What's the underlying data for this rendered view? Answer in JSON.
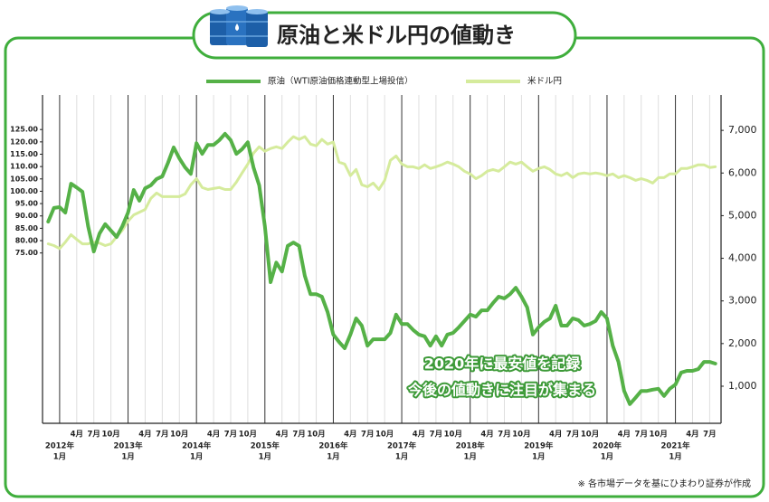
{
  "chart_data": {
    "type": "line",
    "title": "原油と米ドル円の値動き",
    "annotations": [
      "2020年に最安値を記録",
      "今後の値動きに注目が集まる"
    ],
    "footnote": "※ 各市場データを基にひまわり証券が作成",
    "grid": true,
    "legend": "top",
    "xlim": [
      "2011-10",
      "2021-09"
    ],
    "ylim": [
      6,
      139
    ],
    "y2lim": [
      130,
      7830
    ],
    "yticks": [
      {
        "value": 75,
        "label": "75.00"
      },
      {
        "value": 80,
        "label": "80.00"
      },
      {
        "value": 85,
        "label": "85.00"
      },
      {
        "value": 90,
        "label": "90.00"
      },
      {
        "value": 95,
        "label": "95.00"
      },
      {
        "value": 100,
        "label": "100.00"
      },
      {
        "value": 105,
        "label": "105.00"
      },
      {
        "value": 110,
        "label": "110.00"
      },
      {
        "value": 115,
        "label": "115.00"
      },
      {
        "value": 120,
        "label": "120.00"
      },
      {
        "value": 125,
        "label": "125.00"
      }
    ],
    "y2ticks": [
      {
        "value": 1000,
        "label": "1,000"
      },
      {
        "value": 2000,
        "label": "2,000"
      },
      {
        "value": 3000,
        "label": "3,000"
      },
      {
        "value": 4000,
        "label": "4,000"
      },
      {
        "value": 5000,
        "label": "5,000"
      },
      {
        "value": 6000,
        "label": "6,000"
      },
      {
        "value": 7000,
        "label": "7,000"
      }
    ],
    "xticks": [
      {
        "value": "2012-01",
        "label": [
          "2012年",
          "1月"
        ]
      },
      {
        "value": "2012-04",
        "label": "4月"
      },
      {
        "value": "2012-07",
        "label": "7月"
      },
      {
        "value": "2012-10",
        "label": "10月"
      },
      {
        "value": "2013-01",
        "label": [
          "2013年",
          "1月"
        ]
      },
      {
        "value": "2013-04",
        "label": "4月"
      },
      {
        "value": "2013-07",
        "label": "7月"
      },
      {
        "value": "2013-10",
        "label": "10月"
      },
      {
        "value": "2014-01",
        "label": [
          "2014年",
          "1月"
        ]
      },
      {
        "value": "2014-04",
        "label": "4月"
      },
      {
        "value": "2014-07",
        "label": "7月"
      },
      {
        "value": "2014-10",
        "label": "10月"
      },
      {
        "value": "2015-01",
        "label": [
          "2015年",
          "1月"
        ]
      },
      {
        "value": "2015-04",
        "label": "4月"
      },
      {
        "value": "2015-07",
        "label": "7月"
      },
      {
        "value": "2015-10",
        "label": "10月"
      },
      {
        "value": "2016-01",
        "label": [
          "2016年",
          "1月"
        ]
      },
      {
        "value": "2016-04",
        "label": "4月"
      },
      {
        "value": "2016-07",
        "label": "7月"
      },
      {
        "value": "2016-10",
        "label": "10月"
      },
      {
        "value": "2017-01",
        "label": [
          "2017年",
          "1月"
        ]
      },
      {
        "value": "2017-04",
        "label": "4月"
      },
      {
        "value": "2017-07",
        "label": "7月"
      },
      {
        "value": "2017-10",
        "label": "10月"
      },
      {
        "value": "2018-01",
        "label": [
          "2018年",
          "1月"
        ]
      },
      {
        "value": "2018-04",
        "label": "4月"
      },
      {
        "value": "2018-07",
        "label": "7月"
      },
      {
        "value": "2018-10",
        "label": "10月"
      },
      {
        "value": "2019-01",
        "label": [
          "2019年",
          "1月"
        ]
      },
      {
        "value": "2019-04",
        "label": "4月"
      },
      {
        "value": "2019-07",
        "label": "7月"
      },
      {
        "value": "2019-10",
        "label": "10月"
      },
      {
        "value": "2020-01",
        "label": [
          "2020年",
          "1月"
        ]
      },
      {
        "value": "2020-04",
        "label": "4月"
      },
      {
        "value": "2020-07",
        "label": "7月"
      },
      {
        "value": "2020-10",
        "label": "10月"
      },
      {
        "value": "2021-01",
        "label": [
          "2021年",
          "1月"
        ]
      },
      {
        "value": "2021-04",
        "label": "4月"
      },
      {
        "value": "2021-07",
        "label": "7月"
      }
    ],
    "x": [
      "2011-11",
      "2011-12",
      "2012-01",
      "2012-02",
      "2012-03",
      "2012-04",
      "2012-05",
      "2012-06",
      "2012-07",
      "2012-08",
      "2012-09",
      "2012-10",
      "2012-11",
      "2012-12",
      "2013-01",
      "2013-02",
      "2013-03",
      "2013-04",
      "2013-05",
      "2013-06",
      "2013-07",
      "2013-08",
      "2013-09",
      "2013-10",
      "2013-11",
      "2013-12",
      "2014-01",
      "2014-02",
      "2014-03",
      "2014-04",
      "2014-05",
      "2014-06",
      "2014-07",
      "2014-08",
      "2014-09",
      "2014-10",
      "2014-11",
      "2014-12",
      "2015-01",
      "2015-02",
      "2015-03",
      "2015-04",
      "2015-05",
      "2015-06",
      "2015-07",
      "2015-08",
      "2015-09",
      "2015-10",
      "2015-11",
      "2015-12",
      "2016-01",
      "2016-02",
      "2016-03",
      "2016-04",
      "2016-05",
      "2016-06",
      "2016-07",
      "2016-08",
      "2016-09",
      "2016-10",
      "2016-11",
      "2016-12",
      "2017-01",
      "2017-02",
      "2017-03",
      "2017-04",
      "2017-05",
      "2017-06",
      "2017-07",
      "2017-08",
      "2017-09",
      "2017-10",
      "2017-11",
      "2017-12",
      "2018-01",
      "2018-02",
      "2018-03",
      "2018-04",
      "2018-05",
      "2018-06",
      "2018-07",
      "2018-08",
      "2018-09",
      "2018-10",
      "2018-11",
      "2018-12",
      "2019-01",
      "2019-02",
      "2019-03",
      "2019-04",
      "2019-05",
      "2019-06",
      "2019-07",
      "2019-08",
      "2019-09",
      "2019-10",
      "2019-11",
      "2019-12",
      "2020-01",
      "2020-02",
      "2020-03",
      "2020-04",
      "2020-05",
      "2020-06",
      "2020-07",
      "2020-08",
      "2020-09",
      "2020-10",
      "2020-11",
      "2020-12",
      "2021-01",
      "2021-02",
      "2021-03",
      "2021-04",
      "2021-05",
      "2021-06",
      "2021-07",
      "2021-08"
    ],
    "series": [
      {
        "name": "原油（WTI原油価格連動型上場投信）",
        "color": "#55b147",
        "axis": "y2",
        "values": [
          4860,
          5180,
          5200,
          5070,
          5750,
          5660,
          5560,
          4750,
          4160,
          4580,
          4800,
          4650,
          4500,
          4750,
          5070,
          5600,
          5350,
          5640,
          5710,
          5860,
          5920,
          6240,
          6600,
          6340,
          6130,
          5980,
          6700,
          6450,
          6660,
          6660,
          6770,
          6920,
          6770,
          6450,
          6560,
          6720,
          6130,
          5710,
          4750,
          3440,
          3900,
          3690,
          4290,
          4370,
          4290,
          3590,
          3160,
          3160,
          3100,
          2740,
          2210,
          2040,
          1890,
          2210,
          2590,
          2420,
          1950,
          2100,
          2100,
          2100,
          2250,
          2680,
          2460,
          2460,
          2320,
          2210,
          2170,
          1950,
          2170,
          1950,
          2210,
          2250,
          2380,
          2530,
          2680,
          2630,
          2780,
          2780,
          2950,
          3100,
          3060,
          3160,
          3310,
          3100,
          2850,
          2210,
          2380,
          2510,
          2590,
          2890,
          2420,
          2420,
          2590,
          2550,
          2420,
          2460,
          2530,
          2740,
          2590,
          1950,
          1570,
          890,
          580,
          730,
          890,
          890,
          920,
          940,
          770,
          940,
          1040,
          1320,
          1360,
          1360,
          1400,
          1570,
          1570,
          1530
        ]
      },
      {
        "name": "米ドル円",
        "color": "#d5eb9c",
        "axis": "y",
        "values": [
          78.7,
          78.0,
          76.8,
          79.4,
          82.4,
          80.5,
          78.7,
          78.7,
          79.4,
          79.0,
          78.0,
          78.7,
          81.6,
          84.2,
          87.9,
          90.4,
          91.5,
          92.6,
          97.1,
          99.3,
          97.8,
          97.8,
          97.8,
          97.8,
          98.9,
          102.6,
          105.1,
          101.5,
          100.7,
          101.1,
          101.5,
          100.7,
          100.7,
          103.7,
          107.4,
          111.0,
          115.4,
          118.0,
          116.2,
          117.3,
          118.0,
          117.3,
          119.9,
          122.1,
          121.0,
          122.1,
          119.1,
          118.4,
          121.0,
          119.1,
          119.9,
          111.8,
          111.0,
          106.3,
          108.8,
          102.6,
          101.8,
          103.3,
          100.7,
          104.4,
          112.5,
          114.3,
          111.0,
          109.9,
          109.9,
          109.2,
          110.7,
          109.2,
          109.9,
          110.7,
          111.8,
          111.0,
          109.9,
          108.1,
          107.0,
          105.1,
          106.3,
          108.1,
          108.8,
          108.1,
          109.9,
          111.8,
          111.0,
          111.8,
          109.9,
          108.1,
          109.2,
          109.9,
          108.8,
          107.0,
          106.3,
          107.4,
          105.5,
          107.0,
          107.4,
          107.0,
          107.4,
          107.0,
          106.3,
          107.0,
          105.5,
          106.3,
          105.5,
          104.4,
          105.1,
          104.4,
          103.3,
          105.5,
          105.5,
          107.0,
          107.0,
          109.2,
          109.2,
          109.9,
          110.7,
          110.7,
          109.6,
          109.9
        ]
      }
    ]
  }
}
